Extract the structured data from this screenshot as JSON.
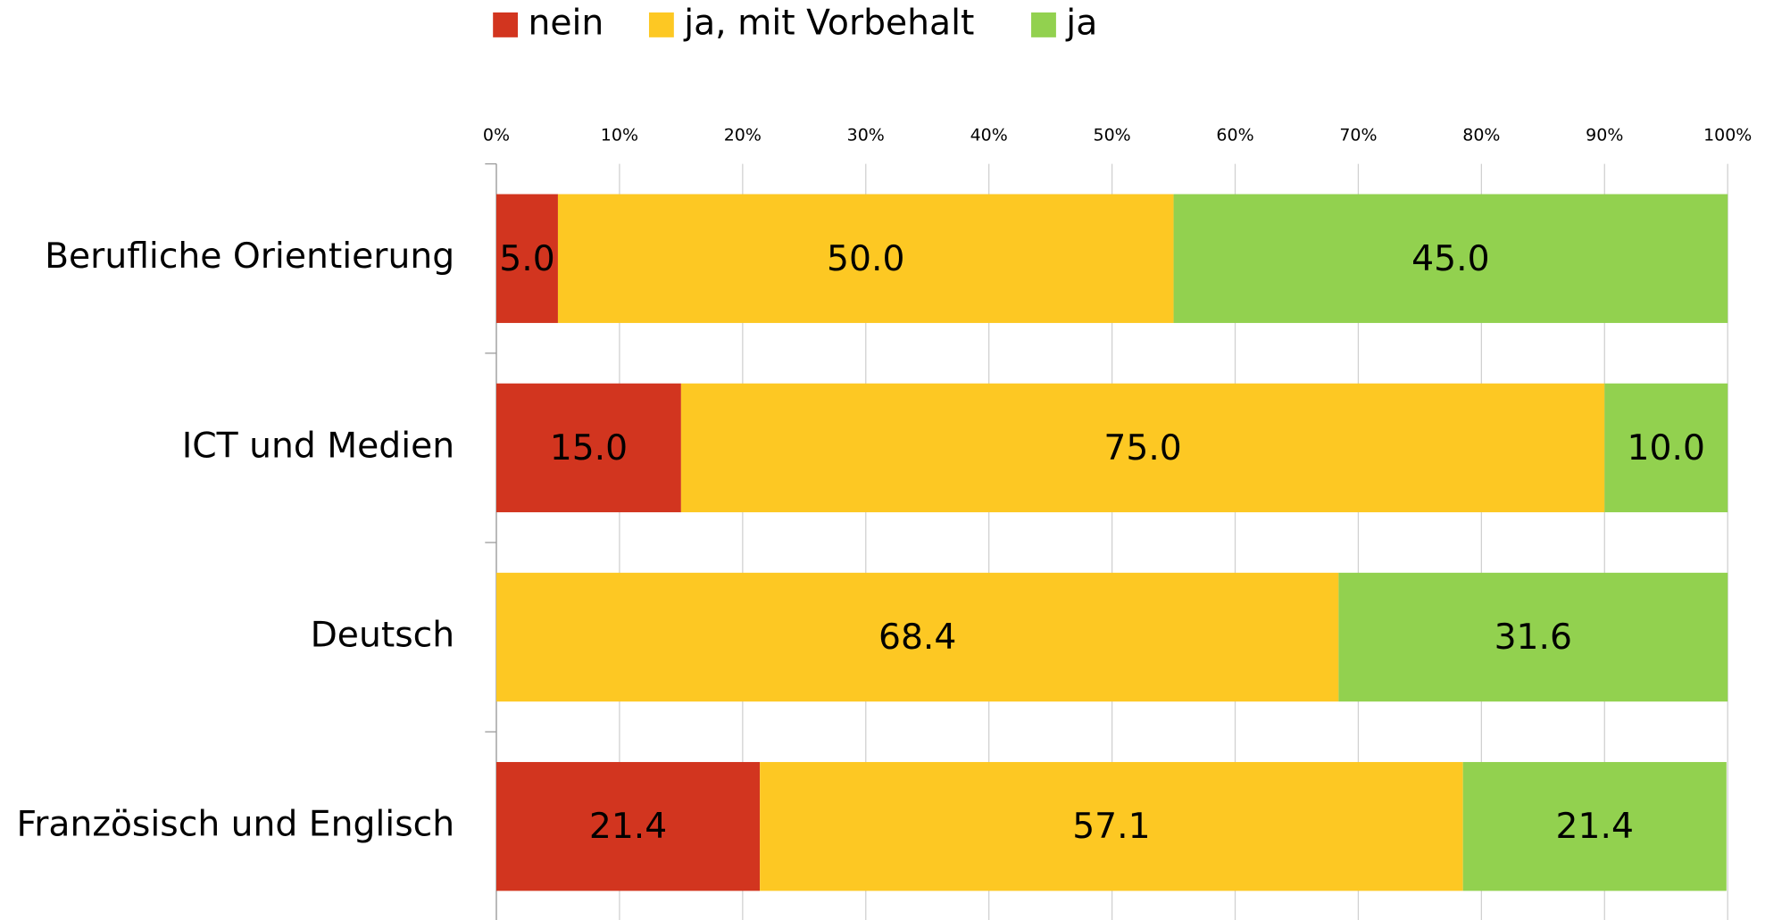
{
  "chart_data": {
    "type": "stacked-barh",
    "categories": [
      "Berufliche Orientierung",
      "ICT und Medien",
      "Deutsch",
      "Französisch und Englisch"
    ],
    "series": [
      {
        "name": "nein",
        "color": "#d2351f",
        "values": [
          5.0,
          15.0,
          0,
          21.4
        ],
        "value_labels": [
          "5.0",
          "15.0",
          null,
          "21.4"
        ]
      },
      {
        "name": "ja, mit Vorbehalt",
        "color": "#fdc823",
        "values": [
          50.0,
          75.0,
          68.4,
          57.1
        ],
        "value_labels": [
          "50.0",
          "75.0",
          "68.4",
          "57.1"
        ]
      },
      {
        "name": "ja",
        "color": "#92d14f",
        "values": [
          45.0,
          10.0,
          31.6,
          21.4
        ],
        "value_labels": [
          "45.0",
          "10.0",
          "31.6",
          "21.4"
        ]
      }
    ],
    "xlim": [
      0,
      100
    ],
    "xticks": [
      {
        "value": 0,
        "label": "0%"
      },
      {
        "value": 10,
        "label": "10%"
      },
      {
        "value": 20,
        "label": "20%"
      },
      {
        "value": 30,
        "label": "30%"
      },
      {
        "value": 40,
        "label": "40%"
      },
      {
        "value": 50,
        "label": "50%"
      },
      {
        "value": 60,
        "label": "60%"
      },
      {
        "value": 70,
        "label": "70%"
      },
      {
        "value": 80,
        "label": "80%"
      },
      {
        "value": 90,
        "label": "90%"
      },
      {
        "value": 100,
        "label": "100%"
      }
    ],
    "grid": true,
    "legend": "top"
  }
}
